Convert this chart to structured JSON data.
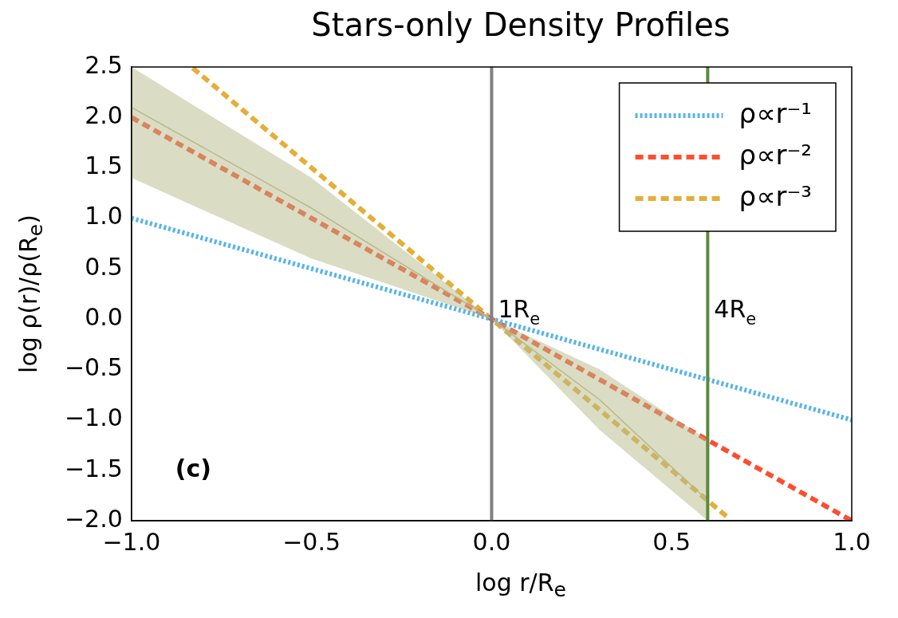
{
  "chart_data": {
    "type": "line",
    "title": "Stars-only Density Profiles",
    "xlabel": "log r/R$_{e}$",
    "ylabel": "log ρ(r)/ρ(R$_{e}$)",
    "xlim": [
      -1,
      1
    ],
    "ylim": [
      -2,
      2.5
    ],
    "xticks": [
      {
        "value": -1,
        "label": "−1.0"
      },
      {
        "value": -0.5,
        "label": "−0.5"
      },
      {
        "value": 0,
        "label": "0.0"
      },
      {
        "value": 0.5,
        "label": "0.5"
      },
      {
        "value": 1,
        "label": "1.0"
      }
    ],
    "yticks": [
      {
        "value": -2,
        "label": "−2.0"
      },
      {
        "value": -1.5,
        "label": "−1.5"
      },
      {
        "value": -1,
        "label": "−1.0"
      },
      {
        "value": -0.5,
        "label": "−0.5"
      },
      {
        "value": 0,
        "label": "0.0"
      },
      {
        "value": 0.5,
        "label": "0.5"
      },
      {
        "value": 1,
        "label": "1.0"
      },
      {
        "value": 1.5,
        "label": "1.5"
      },
      {
        "value": 2,
        "label": "2.0"
      },
      {
        "value": 2.5,
        "label": "2.5"
      }
    ],
    "series": [
      {
        "color": "#b5b98a",
        "x": [
          -1,
          -0.5,
          0,
          0.3,
          0.6
        ],
        "values": [
          2.1,
          1.1,
          0,
          -0.8,
          -1.8
        ],
        "lower": [
          1.4,
          0.6,
          0,
          -1.1,
          -2
        ],
        "upper": [
          2.5,
          1.4,
          0,
          -0.5,
          -1.2
        ],
        "line_style": "solid"
      },
      {
        "name": "ρ∝r⁻¹",
        "color": "#56b4e9",
        "x": [
          -1,
          1
        ],
        "values": [
          1,
          -1
        ],
        "line_style": "dotted"
      },
      {
        "name": "ρ∝r⁻²",
        "color": "#fc4f30",
        "x": [
          -1,
          1
        ],
        "values": [
          2,
          -2
        ],
        "line_style": "dashed"
      },
      {
        "name": "ρ∝r⁻³",
        "color": "#e5ae38",
        "x": [
          -0.83,
          0.66
        ],
        "values": [
          2.49,
          -1.98
        ],
        "line_style": "dashed"
      }
    ],
    "ref_lines": [
      {
        "axis": "x",
        "value": 0,
        "label": "1R$_{e}$",
        "color": "#808080"
      },
      {
        "axis": "x",
        "value": 0.6,
        "label": "4R$_{e}$",
        "color": "#5a8a3a"
      }
    ],
    "annotations": [
      "(c)"
    ],
    "legend": "top right",
    "marker": "none",
    "grid": false
  }
}
